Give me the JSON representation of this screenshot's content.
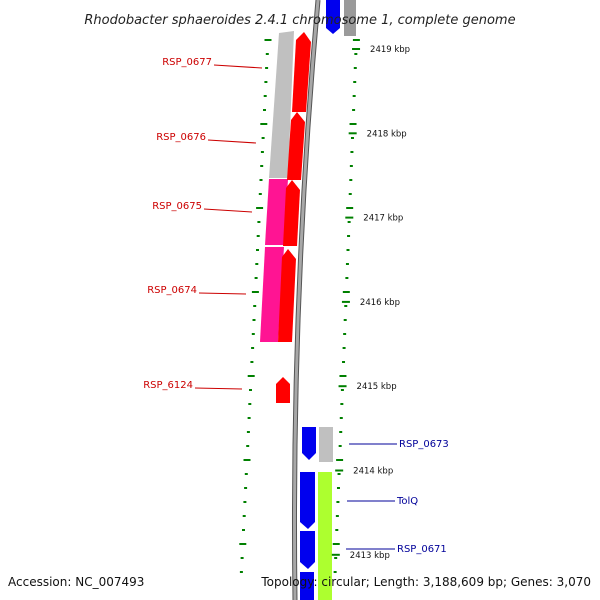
{
  "title": "Rhodobacter sphaeroides 2.4.1 chromosome 1, complete genome",
  "footer": {
    "accession": "Accession: NC_007493",
    "topology": "Topology: circular; Length: 3,188,609 bp; Genes: 3,070"
  },
  "colors": {
    "left_label": "#cc0000",
    "right_label": "#000099",
    "tick": "#008000",
    "backbone": "#888888",
    "red_gene": "#ff0000",
    "blue_gene": "#0000ee",
    "pink_gene": "#ff1493",
    "gray_gene": "#c0c0c0",
    "lime_gene": "#adff2f"
  },
  "kbp_labels": [
    {
      "label": "2419 kbp",
      "kbp": 2419
    },
    {
      "label": "2418 kbp",
      "kbp": 2418
    },
    {
      "label": "2417 kbp",
      "kbp": 2417
    },
    {
      "label": "2416 kbp",
      "kbp": 2416
    },
    {
      "label": "2415 kbp",
      "kbp": 2415
    },
    {
      "label": "2414 kbp",
      "kbp": 2414
    },
    {
      "label": "2413 kbp",
      "kbp": 2413
    }
  ],
  "left_genes": [
    {
      "label": "RSP_0677"
    },
    {
      "label": "RSP_0676"
    },
    {
      "label": "RSP_0675"
    },
    {
      "label": "RSP_0674"
    },
    {
      "label": "RSP_6124"
    }
  ],
  "right_genes": [
    {
      "label": "RSP_0673"
    },
    {
      "label": "TolQ"
    },
    {
      "label": "RSP_0671"
    }
  ]
}
